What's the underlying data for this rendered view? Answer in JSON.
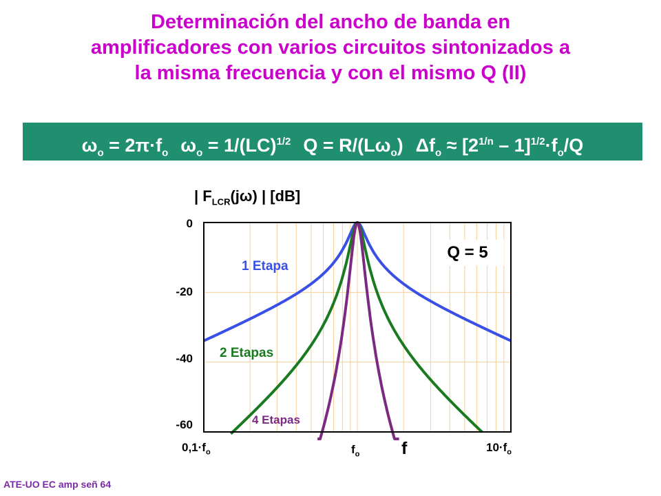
{
  "slide": {
    "title_lines": [
      "Determinación del ancho de banda en",
      "amplificadores con varios circuitos sintonizados a",
      "la misma frecuencia y con el mismo Q (II)"
    ],
    "footer": "ATE-UO EC amp señ 64",
    "title_color": "#cc00cc",
    "formula_bg_color": "#1f8f70"
  },
  "formulas": {
    "f1_lhs": "ω",
    "f1_sub": "o",
    "f1_rhs": " = 2π·f",
    "f1_rhs_sub": "o",
    "f2_lhs": "ω",
    "f2_sub": "o",
    "f2_mid": " = 1/(LC)",
    "f2_sup": "1/2",
    "f3_a": "Q = R/(Lω",
    "f3_sub": "o",
    "f3_b": ")",
    "f4_a": "Δf",
    "f4_sub": "o",
    "f4_b": " ≈ [2",
    "f4_sup1": "1/n",
    "f4_c": " – 1]",
    "f4_sup2": "1/2",
    "f4_d": "·f",
    "f4_sub2": "o",
    "f4_e": "/Q"
  },
  "chart_data": {
    "type": "line",
    "ylabel_prefix": "F",
    "ylabel_sub": "LCR",
    "ylabel_suffix": "(jω)",
    "ylabel_unit": "[dB]",
    "xlabel": "f",
    "x_scale": "log",
    "x_unit": "f/fo",
    "xlim": [
      0.1,
      10
    ],
    "ylim": [
      -60,
      0
    ],
    "y_ticks": [
      "0",
      "-20",
      "-40",
      "-60"
    ],
    "x_tick_left": {
      "text": "0,1·f",
      "sub": "o"
    },
    "x_tick_center": {
      "text": "f",
      "sub": "o"
    },
    "x_tick_right": {
      "text": "10·f",
      "sub": "o"
    },
    "grid": true,
    "grid_color": "#f5cf9a",
    "annotation": "Q = 5",
    "Q": 5,
    "series": [
      {
        "name": "1 Etapa",
        "stages": 1,
        "color": "#3a4fe6",
        "x_range": [
          0.1,
          10
        ]
      },
      {
        "name": "2 Etapas",
        "stages": 2,
        "color": "#1a7a20",
        "x_range": [
          0.15,
          6.5
        ]
      },
      {
        "name": "4 Etapas",
        "stages": 4,
        "color": "#7b2a82",
        "x_range": [
          0.55,
          1.87
        ]
      }
    ]
  }
}
